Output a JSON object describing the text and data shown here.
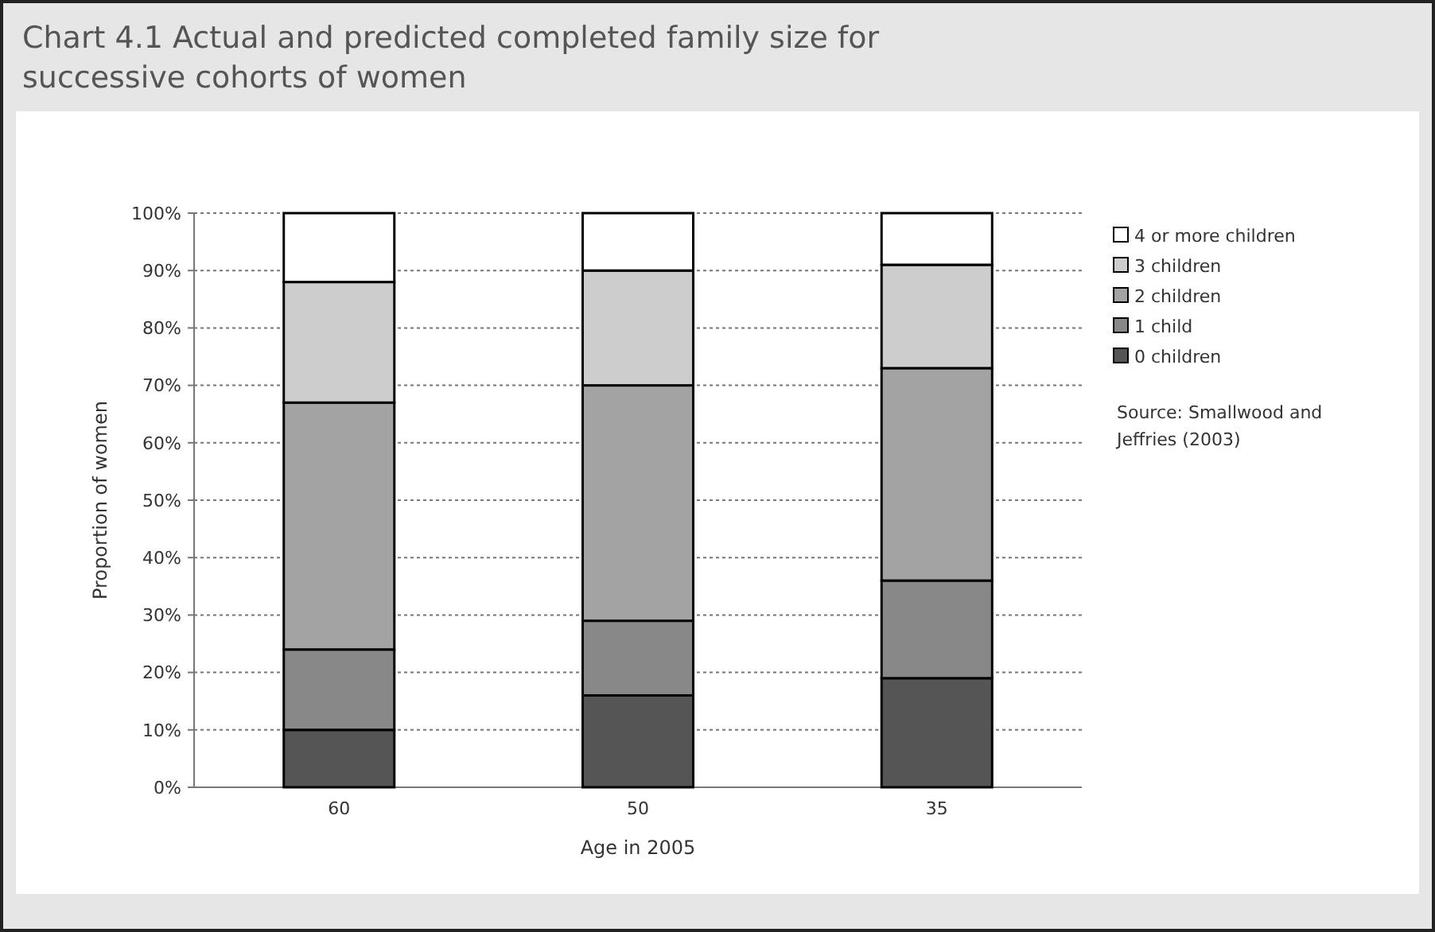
{
  "chart_data": {
    "type": "bar",
    "title": "Chart 4.1 Actual and predicted completed family size for successive cohorts of women",
    "xlabel": "Age in 2005",
    "ylabel": "Proportion of women",
    "categories": [
      "60",
      "50",
      "35"
    ],
    "stacked": true,
    "series": [
      {
        "name": "0 children",
        "color": "#555555",
        "values": [
          10,
          16,
          19
        ]
      },
      {
        "name": "1 child",
        "color": "#888888",
        "values": [
          14,
          13,
          17
        ]
      },
      {
        "name": "2 children",
        "color": "#a3a3a3",
        "values": [
          43,
          41,
          37
        ]
      },
      {
        "name": "3 children",
        "color": "#cdcdcd",
        "values": [
          21,
          20,
          18
        ]
      },
      {
        "name": "4 or more children",
        "color": "#ffffff",
        "values": [
          12,
          10,
          9
        ]
      }
    ],
    "ylim": [
      0,
      100
    ],
    "yticks": [
      {
        "value": 0,
        "label": "0%"
      },
      {
        "value": 10,
        "label": "10%"
      },
      {
        "value": 20,
        "label": "20%"
      },
      {
        "value": 30,
        "label": "30%"
      },
      {
        "value": 40,
        "label": "40%"
      },
      {
        "value": 50,
        "label": "50%"
      },
      {
        "value": 60,
        "label": "60%"
      },
      {
        "value": 70,
        "label": "70%"
      },
      {
        "value": 80,
        "label": "80%"
      },
      {
        "value": 90,
        "label": "90%"
      },
      {
        "value": 100,
        "label": "100%"
      }
    ],
    "grid": "y",
    "legend": "right",
    "annotations": [
      "Source: Smallwood and Jeffries (2003)"
    ]
  }
}
